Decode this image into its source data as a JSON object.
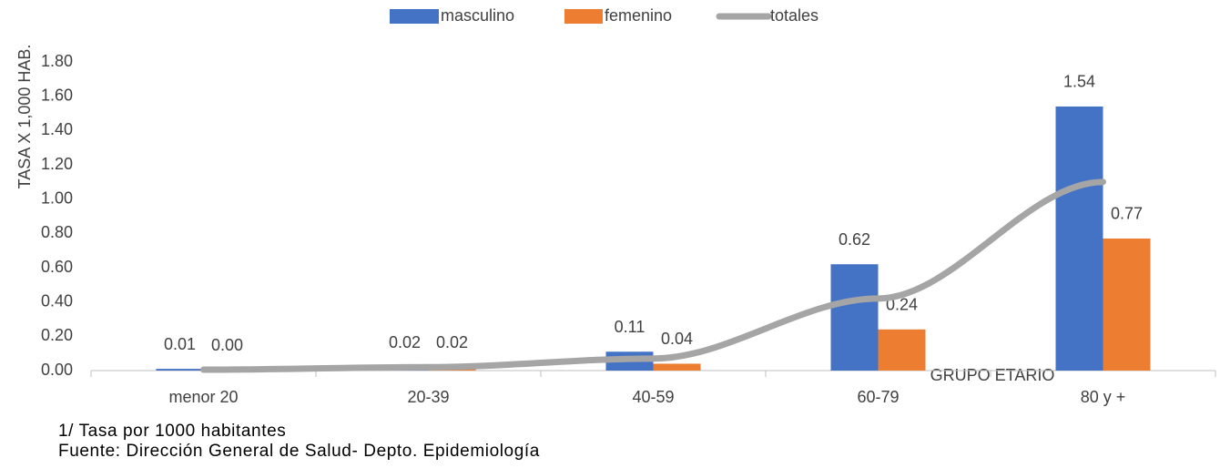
{
  "chart_data": {
    "type": "bar",
    "categories": [
      "menor 20",
      "20-39",
      "40-59",
      "60-79",
      "80 y +"
    ],
    "series": [
      {
        "name": "masculino",
        "type": "bar",
        "color": "#4472c4",
        "values": [
          0.01,
          0.02,
          0.11,
          0.62,
          1.54
        ],
        "value_labels": [
          "0.01",
          "0.02",
          "0.11",
          "0.62",
          "1.54"
        ]
      },
      {
        "name": "femenino",
        "type": "bar",
        "color": "#ed7d31",
        "values": [
          0.003,
          0.02,
          0.04,
          0.24,
          0.77
        ],
        "value_labels": [
          "0.00",
          "0.02",
          "0.04",
          "0.24",
          "0.77"
        ]
      },
      {
        "name": "totales",
        "type": "line",
        "color": "#a5a5a5",
        "values": [
          0.005,
          0.02,
          0.07,
          0.42,
          1.1
        ]
      }
    ],
    "ylim": [
      0,
      1.8
    ],
    "yticks": [
      {
        "value": 0,
        "label": "0.00"
      },
      {
        "value": 0.2,
        "label": "0.20"
      },
      {
        "value": 0.4,
        "label": "0.40"
      },
      {
        "value": 0.6,
        "label": "0.60"
      },
      {
        "value": 0.8,
        "label": "0.80"
      },
      {
        "value": 1,
        "label": "1.00"
      },
      {
        "value": 1.2,
        "label": "1.20"
      },
      {
        "value": 1.4,
        "label": "1.40"
      },
      {
        "value": 1.6,
        "label": "1.60"
      },
      {
        "value": 1.8,
        "label": "1.80"
      }
    ],
    "y_label": "TASA X 1,000 HAB.",
    "x_label": "GRUPO ETARIO",
    "legend": "top",
    "notes": [
      "1/ Tasa por 1000 habitantes",
      "Fuente: Dirección General de Salud- Depto. Epidemiología"
    ]
  }
}
